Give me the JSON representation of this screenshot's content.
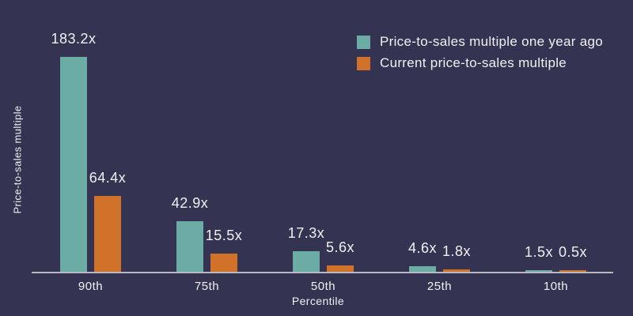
{
  "chart_data": {
    "type": "bar",
    "title": "",
    "categories": [
      "90th",
      "75th",
      "50th",
      "25th",
      "10th"
    ],
    "series": [
      {
        "name": "Price-to-sales multiple one year ago",
        "slug": "one-year-ago",
        "color": "#6BACA4",
        "values": [
          183.2,
          42.9,
          17.3,
          4.6,
          1.5
        ],
        "labels": [
          "183.2x",
          "42.9x",
          "17.3x",
          "4.6x",
          "1.5x"
        ]
      },
      {
        "name": "Current price-to-sales multiple",
        "slug": "current",
        "color": "#D0722A",
        "values": [
          64.4,
          15.5,
          5.6,
          1.8,
          0.5
        ],
        "labels": [
          "64.4x",
          "15.5x",
          "5.6x",
          "1.8x",
          "0.5x"
        ]
      }
    ],
    "xlabel": "Percentile",
    "ylabel": "Price-to-sales multiple",
    "ylim": [
      0,
      190
    ],
    "grid": false,
    "legend_position": "top-right"
  },
  "colors": {
    "background": "#343351",
    "axis_line": "#B9B7C2",
    "text": "#F2F0F4"
  }
}
